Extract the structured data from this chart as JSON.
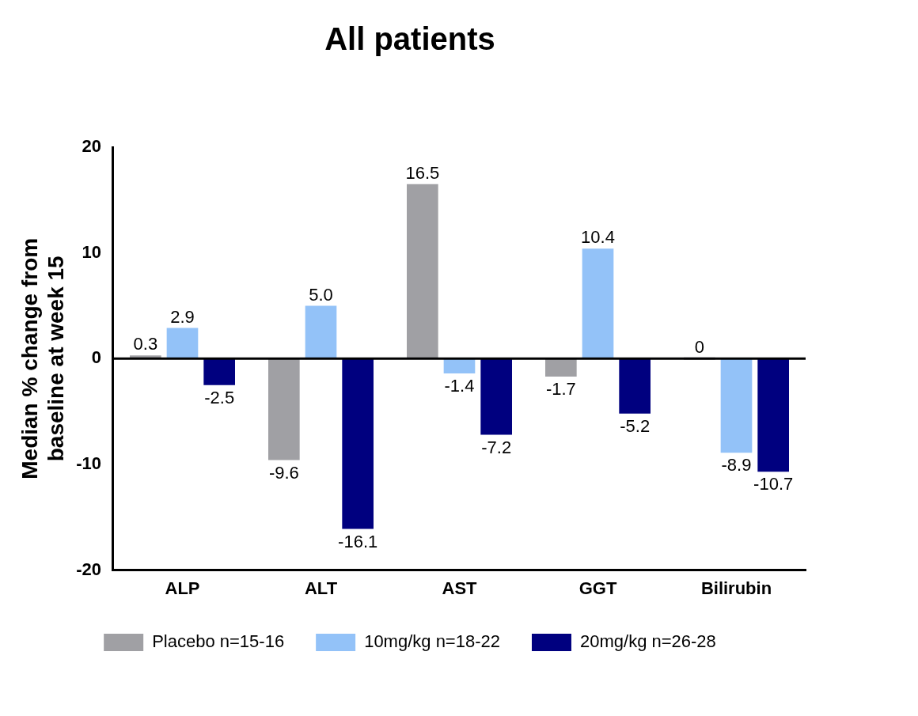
{
  "chart_data": {
    "type": "bar",
    "title": "All patients",
    "ylabel": "Median % change from baseline at week 15",
    "categories": [
      "ALP",
      "ALT",
      "AST",
      "GGT",
      "Bilirubin"
    ],
    "series": [
      {
        "name": "Placebo n=15-16",
        "color": "#a0a0a4",
        "values": [
          0.3,
          -9.6,
          16.5,
          -1.7,
          0
        ],
        "value_labels": [
          "0.3",
          "-9.6",
          "16.5",
          "-1.7",
          "0"
        ]
      },
      {
        "name": "10mg/kg n=18-22",
        "color": "#93c2f8",
        "values": [
          2.9,
          5.0,
          -1.4,
          10.4,
          -8.9
        ],
        "value_labels": [
          "2.9",
          "5.0",
          "-1.4",
          "10.4",
          "-8.9"
        ]
      },
      {
        "name": "20mg/kg n=26-28",
        "color": "#00007f",
        "values": [
          -2.5,
          -16.1,
          -7.2,
          -5.2,
          -10.7
        ],
        "value_labels": [
          "-2.5",
          "-16.1",
          "-7.2",
          "-5.2",
          "-10.7"
        ]
      }
    ],
    "ylim": [
      -20,
      20
    ],
    "yticks": [
      -20,
      -10,
      0,
      10,
      20
    ],
    "legend": "bottom"
  }
}
